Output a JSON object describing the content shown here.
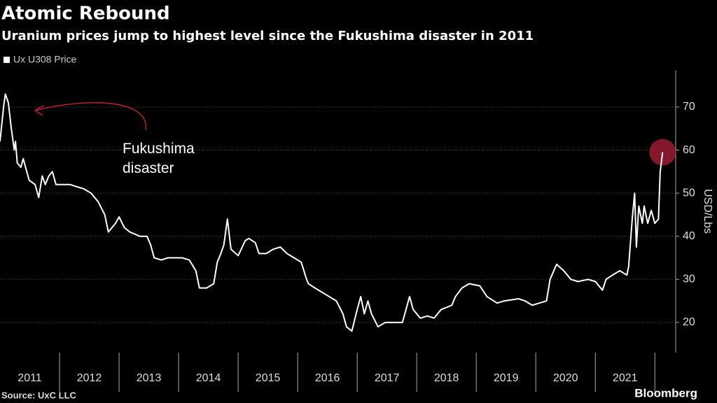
{
  "chart_data": {
    "type": "line",
    "title": "Atomic Rebound",
    "subtitle": "Uranium prices jump to highest level since the Fukushima disaster in 2011",
    "y_label": "USD/Lbs",
    "annotation": "Fukushima\ndisaster",
    "source": "Source: UxC LLC",
    "brand": "Bloomberg",
    "x": [
      2011.0,
      2011.06,
      2011.09,
      2011.14,
      2011.19,
      2011.24,
      2011.26,
      2011.29,
      2011.35,
      2011.39,
      2011.45,
      2011.49,
      2011.59,
      2011.65,
      2011.71,
      2011.76,
      2011.82,
      2011.88,
      2011.94,
      2012.06,
      2012.18,
      2012.29,
      2012.41,
      2012.53,
      2012.65,
      2012.76,
      2012.82,
      2012.94,
      2013.0,
      2013.09,
      2013.18,
      2013.35,
      2013.47,
      2013.53,
      2013.59,
      2013.71,
      2013.82,
      2013.94,
      2014.06,
      2014.18,
      2014.29,
      2014.35,
      2014.47,
      2014.59,
      2014.65,
      2014.71,
      2014.76,
      2014.82,
      2014.88,
      2015.0,
      2015.12,
      2015.18,
      2015.29,
      2015.35,
      2015.47,
      2015.59,
      2015.71,
      2015.82,
      2015.94,
      2016.06,
      2016.15,
      2016.18,
      2016.29,
      2016.41,
      2016.53,
      2016.65,
      2016.76,
      2016.82,
      2016.91,
      2017.0,
      2017.06,
      2017.12,
      2017.18,
      2017.24,
      2017.35,
      2017.47,
      2017.59,
      2017.76,
      2017.82,
      2017.88,
      2017.94,
      2018.06,
      2018.18,
      2018.29,
      2018.41,
      2018.59,
      2018.65,
      2018.76,
      2018.88,
      2019.06,
      2019.18,
      2019.35,
      2019.47,
      2019.71,
      2019.82,
      2019.94,
      2020.06,
      2020.18,
      2020.24,
      2020.35,
      2020.47,
      2020.59,
      2020.71,
      2020.88,
      2021.0,
      2021.12,
      2021.18,
      2021.29,
      2021.41,
      2021.53,
      2021.56,
      2021.62,
      2021.66,
      2021.69,
      2021.73,
      2021.79,
      2021.82,
      2021.88,
      2021.94,
      2022.0,
      2022.06,
      2022.09,
      2022.13
    ],
    "series": [
      {
        "name": "Ux U308 Price",
        "color": "#ffffff",
        "values": [
          62,
          70,
          73,
          71,
          65,
          60,
          62,
          57,
          56,
          58,
          55,
          53,
          52,
          49,
          54,
          52,
          54,
          55,
          52,
          52,
          52,
          51.5,
          51,
          50,
          48,
          45,
          41,
          43,
          44.5,
          42,
          41,
          40,
          40,
          38,
          35,
          34.5,
          35,
          35,
          35,
          34.5,
          32,
          28,
          28,
          29,
          34,
          36,
          38,
          44,
          37,
          35.5,
          39,
          39.5,
          38.5,
          36,
          36,
          37,
          37.5,
          36,
          35,
          34,
          30,
          29,
          28,
          27,
          26,
          25,
          22,
          19,
          18,
          23,
          26,
          22,
          25,
          22,
          19,
          20,
          20,
          20,
          23,
          26,
          23,
          21,
          21.5,
          21,
          23,
          24,
          26,
          28,
          29,
          28.5,
          26,
          24.5,
          25,
          25.5,
          25,
          24,
          24.5,
          25,
          30,
          33.5,
          32,
          30,
          29.5,
          30,
          29.5,
          27.5,
          30,
          31,
          32,
          31,
          33,
          44,
          50,
          37.5,
          47,
          43,
          47,
          43,
          46,
          43,
          44,
          55,
          59.5
        ]
      }
    ],
    "xlim": [
      2011,
      2022.35
    ],
    "xticks": [
      {
        "value": 2011.5,
        "label": "2011"
      },
      {
        "value": 2012.5,
        "label": "2012"
      },
      {
        "value": 2013.5,
        "label": "2013"
      },
      {
        "value": 2014.5,
        "label": "2014"
      },
      {
        "value": 2015.5,
        "label": "2015"
      },
      {
        "value": 2016.5,
        "label": "2016"
      },
      {
        "value": 2017.5,
        "label": "2017"
      },
      {
        "value": 2018.5,
        "label": "2018"
      },
      {
        "value": 2019.5,
        "label": "2019"
      },
      {
        "value": 2020.5,
        "label": "2020"
      },
      {
        "value": 2021.5,
        "label": "2021"
      }
    ],
    "ylim": [
      13,
      78.5
    ],
    "yticks": [
      20,
      30,
      40,
      50,
      60,
      70
    ],
    "grid": true,
    "highlight_color": "#9b1b30",
    "annotation_color": "#c0202e"
  }
}
